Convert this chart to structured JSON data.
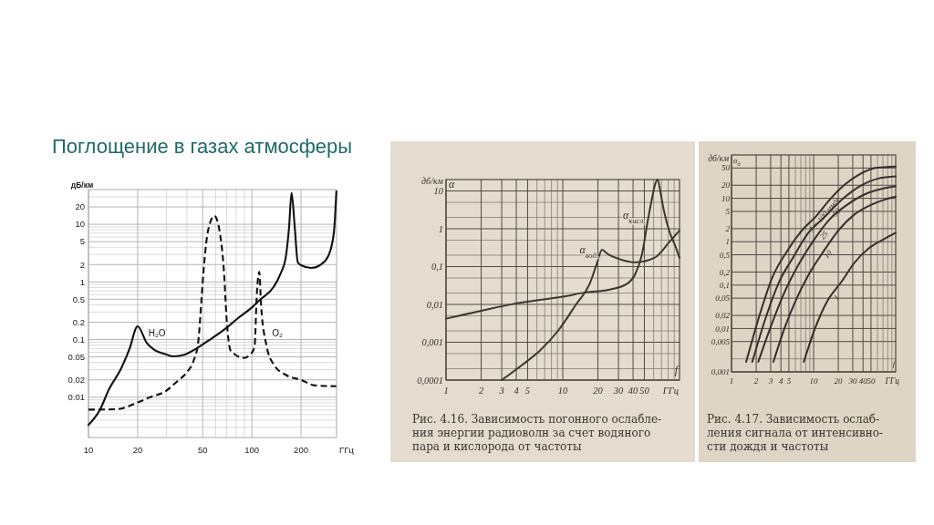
{
  "chart_data": [
    {
      "type": "line",
      "title": "Поглощение в газах атмосферы",
      "xlabel": "ГГц",
      "ylabel": "дБ/км",
      "log": "xy",
      "grid": true,
      "xlim": [
        10,
        330
      ],
      "xticks": [
        10,
        20,
        {
          "value": 30,
          "label": null
        },
        {
          "value": 40,
          "label": null
        },
        50,
        {
          "value": 60,
          "label": null
        },
        {
          "value": 70,
          "label": null
        },
        {
          "value": 80,
          "label": null
        },
        {
          "value": 90,
          "label": null
        },
        100,
        200
      ],
      "ylim": [
        0.002,
        40
      ],
      "yticks": [
        {
          "value": 0.003,
          "label": null
        },
        {
          "value": 0.004,
          "label": null
        },
        {
          "value": 0.005,
          "label": null
        },
        {
          "value": 0.006,
          "label": null
        },
        {
          "value": 0.007,
          "label": null
        },
        {
          "value": 0.008,
          "label": null
        },
        {
          "value": 0.009,
          "label": null
        },
        0.01,
        0.02,
        {
          "value": 0.03,
          "label": null
        },
        {
          "value": 0.04,
          "label": null
        },
        0.05,
        {
          "value": 0.06,
          "label": null
        },
        {
          "value": 0.07,
          "label": null
        },
        {
          "value": 0.08,
          "label": null
        },
        {
          "value": 0.09,
          "label": null
        },
        0.1,
        0.2,
        {
          "value": 0.3,
          "label": null
        },
        {
          "value": 0.4,
          "label": null
        },
        0.5,
        {
          "value": 0.6,
          "label": null
        },
        {
          "value": 0.7,
          "label": null
        },
        {
          "value": 0.8,
          "label": null
        },
        {
          "value": 0.9,
          "label": null
        },
        1,
        2,
        {
          "value": 3,
          "label": null
        },
        {
          "value": 4,
          "label": null
        },
        5,
        {
          "value": 6,
          "label": null
        },
        {
          "value": 7,
          "label": null
        },
        {
          "value": 8,
          "label": null
        },
        {
          "value": 9,
          "label": null
        },
        10,
        20,
        {
          "value": 30,
          "label": null
        }
      ],
      "series": [
        {
          "color": "#111111",
          "line_style": "solid",
          "x": [
            10,
            11.7,
            13.4,
            15.8,
            17.8,
            20,
            22.7,
            25.6,
            30,
            33,
            39,
            45,
            53,
            68,
            83,
            100,
            112,
            136,
            150,
            161,
            169,
            175,
            183,
            191,
            200,
            231,
            264,
            295,
            318,
            329
          ],
          "values": [
            0.0033,
            0.0059,
            0.014,
            0.031,
            0.068,
            0.17,
            0.088,
            0.065,
            0.055,
            0.051,
            0.055,
            0.068,
            0.092,
            0.15,
            0.24,
            0.36,
            0.49,
            0.82,
            1.4,
            2.6,
            9,
            35,
            9,
            2.2,
            1.95,
            1.75,
            2.0,
            2.9,
            7.3,
            37
          ]
        },
        {
          "color": "#111111",
          "line_style": "dashed",
          "x": [
            10,
            11.4,
            15,
            20,
            23.6,
            30,
            35,
            40,
            44,
            47,
            49,
            51,
            54,
            59,
            63.6,
            67.6,
            70,
            74,
            79,
            89,
            100,
            104,
            107,
            111,
            114,
            123,
            136,
            163,
            200,
            243,
            329
          ],
          "values": [
            0.0061,
            0.0061,
            0.0062,
            0.0081,
            0.0099,
            0.013,
            0.019,
            0.027,
            0.043,
            0.092,
            0.43,
            2,
            7.9,
            14,
            7.3,
            1.4,
            0.24,
            0.065,
            0.055,
            0.048,
            0.059,
            0.078,
            0.54,
            1.5,
            0.38,
            0.078,
            0.037,
            0.024,
            0.02,
            0.016,
            0.0155
          ]
        }
      ],
      "annotations": [
        {
          "text": "H₂O",
          "x": 21,
          "y": 0.13
        },
        {
          "text": "O₂",
          "x": 120,
          "y": 0.13
        }
      ]
    },
    {
      "type": "line",
      "title": "Рис. 4.16. Зависимость погонного ослабле-\nния энергии радиоволн за счет водяного\nпара и кислорода от частоты",
      "xlabel": "ГГц",
      "ylabel": "дб/км",
      "log": "xy",
      "grid": true,
      "xlim": [
        1,
        100
      ],
      "xticks": [
        1,
        2,
        3,
        4,
        5,
        {
          "value": 6,
          "label": null
        },
        {
          "value": 7,
          "label": null
        },
        {
          "value": 8,
          "label": null
        },
        {
          "value": 9,
          "label": null
        },
        10,
        20,
        30,
        40,
        50,
        {
          "value": 60,
          "label": null
        },
        {
          "value": 70,
          "label": null
        },
        {
          "value": 80,
          "label": null
        },
        {
          "value": 90,
          "label": null
        }
      ],
      "ylim": [
        0.0001,
        20
      ],
      "yticks": [
        {
          "value": 0.0001,
          "label": "0,0001"
        },
        {
          "value": 0.0002,
          "label": null
        },
        {
          "value": 0.0005,
          "label": null
        },
        {
          "value": 0.001,
          "label": "0,001"
        },
        {
          "value": 0.002,
          "label": null
        },
        {
          "value": 0.005,
          "label": null
        },
        {
          "value": 0.01,
          "label": "0,01"
        },
        {
          "value": 0.02,
          "label": null
        },
        {
          "value": 0.05,
          "label": null
        },
        {
          "value": 0.1,
          "label": "0,1"
        },
        {
          "value": 0.2,
          "label": null
        },
        {
          "value": 0.5,
          "label": null
        },
        1,
        {
          "value": 2,
          "label": null
        },
        {
          "value": 5,
          "label": null
        },
        10
      ],
      "series": [
        {
          "color": "#3a3631",
          "x": [
            1,
            2,
            3.9,
            10,
            16,
            24,
            35,
            42,
            47.5,
            53.6,
            58.8,
            61,
            65,
            68,
            73,
            82,
            92,
            100
          ],
          "values": [
            0.0042,
            0.0068,
            0.0105,
            0.016,
            0.021,
            0.024,
            0.034,
            0.066,
            0.2,
            1.7,
            7.6,
            13,
            20,
            11,
            3.3,
            0.84,
            0.35,
            0.17
          ]
        },
        {
          "color": "#3a3631",
          "x": [
            3,
            4.4,
            6.3,
            9.1,
            13,
            17,
            19.6,
            21.7,
            24,
            31,
            42,
            61,
            82,
            100
          ],
          "values": [
            0.0001,
            0.00024,
            0.00058,
            0.002,
            0.01,
            0.035,
            0.12,
            0.28,
            0.22,
            0.155,
            0.13,
            0.17,
            0.45,
            0.9
          ]
        }
      ],
      "annotations": [
        "α",
        "f",
        {
          "text": "α$_{вод.}$",
          "x": 21.7,
          "y": 0.28
        },
        {
          "text": "α$_{кисл.}$",
          "x": 54.6,
          "y": 2.3
        }
      ]
    },
    {
      "type": "line",
      "title": "Рис. 4.17. Зависимость ослаб-\nления сигнала от интенсивно-\nсти дождя и частоты",
      "xlabel": "ГГц",
      "ylabel": "дб/км",
      "log": "xy",
      "grid": true,
      "xlim": [
        1,
        100
      ],
      "xticks": [
        1,
        2,
        3,
        4,
        5,
        {
          "value": 6,
          "label": null
        },
        {
          "value": 7,
          "label": null
        },
        {
          "value": 8,
          "label": null
        },
        {
          "value": 9,
          "label": null
        },
        10,
        20,
        30,
        40,
        50,
        {
          "value": 60,
          "label": null
        },
        {
          "value": 70,
          "label": null
        },
        {
          "value": 80,
          "label": null
        },
        {
          "value": 90,
          "label": null
        }
      ],
      "ylim": [
        0.001,
        100
      ],
      "yticks": [
        {
          "value": 0.001,
          "label": "0,001"
        },
        {
          "value": 0.002,
          "label": null
        },
        {
          "value": 0.005,
          "label": "0,005"
        },
        {
          "value": 0.01,
          "label": "0,01"
        },
        {
          "value": 0.02,
          "label": "0,02"
        },
        {
          "value": 0.05,
          "label": "0,05"
        },
        {
          "value": 0.1,
          "label": "0,1"
        },
        {
          "value": 0.2,
          "label": "0,2"
        },
        {
          "value": 0.5,
          "label": "0,5"
        },
        1,
        2,
        5,
        10,
        20,
        50
      ],
      "series": [
        {
          "color": "#34302c",
          "x": [
            1.51,
            2.21,
            3.11,
            4.76,
            7.3,
            10.7,
            15.7,
            24,
            36.9,
            56.5,
            100
          ],
          "values": [
            0.0017,
            0.021,
            0.144,
            0.61,
            1.87,
            3.85,
            9.3,
            20.7,
            36.3,
            50,
            54
          ]
        },
        {
          "color": "#34302c",
          "x": [
            1.79,
            2.62,
            3.69,
            5.65,
            8.65,
            13.3,
            22.1,
            36.9,
            61.5,
            100
          ],
          "values": [
            0.0017,
            0.018,
            0.105,
            0.44,
            1.6,
            3.55,
            9.3,
            19.1,
            28.6,
            31.9
          ]
        },
        {
          "color": "#34302c",
          "x": [
            2.12,
            3.11,
            4.37,
            6.7,
            10.3,
            15.7,
            26.2,
            43.7,
            72.9,
            100
          ],
          "values": [
            0.0017,
            0.013,
            0.065,
            0.32,
            1.16,
            3.28,
            7.3,
            12.8,
            17.1,
            19.1
          ]
        },
        {
          "color": "#34302c",
          "x": [
            3.24,
            4.37,
            6.15,
            8.65,
            13.3,
            20.3,
            31.1,
            51.9,
            72.9,
            100
          ],
          "values": [
            0.0017,
            0.0095,
            0.047,
            0.17,
            0.61,
            1.87,
            4.18,
            7.3,
            9.3,
            10.9
          ]
        },
        {
          "color": "#34302c",
          "x": [
            7.6,
            10.3,
            14.4,
            22.1,
            31.1,
            47.6,
            72.9,
            100
          ],
          "values": [
            0.0017,
            0.0095,
            0.04,
            0.123,
            0.32,
            0.72,
            1.16,
            1.6
          ]
        }
      ],
      "annotations": [
        "α$_{д}$",
        "f",
        {
          "text": "J = 100 мм/ч",
          "x": 12,
          "y": 5.0
        },
        {
          "text": "50",
          "x": 17,
          "y": 5.65
        },
        {
          "text": "25",
          "x": 12,
          "y": 1.7
        },
        {
          "text": "10",
          "x": 13.3,
          "y": 0.61
        },
        {
          "text": "1",
          "x": 17,
          "y": 0.062
        }
      ]
    }
  ]
}
